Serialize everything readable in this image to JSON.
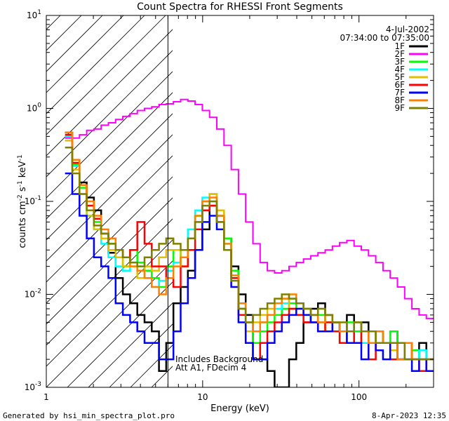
{
  "chart_data": {
    "type": "line",
    "title": "Count Spectra for RHESSI Front Segments",
    "xlabel": "Energy (keV)",
    "ylabel_parts": [
      "counts cm",
      "-2",
      " s",
      "-1",
      " keV",
      "-1"
    ],
    "xscale": "log",
    "yscale": "log",
    "xlim": [
      1,
      300
    ],
    "ylim": [
      0.001,
      10
    ],
    "x_ticks": [
      {
        "v": 1,
        "label": "1"
      },
      {
        "v": 10,
        "label": "10"
      },
      {
        "v": 100,
        "label": "100"
      }
    ],
    "y_ticks": [
      {
        "v": 0.001,
        "base": "10",
        "exp": "-3"
      },
      {
        "v": 0.01,
        "base": "10",
        "exp": "-2"
      },
      {
        "v": 0.1,
        "base": "10",
        "exp": "-1"
      },
      {
        "v": 1,
        "base": "10",
        "exp": "0"
      },
      {
        "v": 10,
        "base": "10",
        "exp": "1"
      }
    ],
    "date": "4-Jul-2002",
    "time_range": "07:34:00 to 07:35:00",
    "shaded_region_upper_keV": 6,
    "annotation_lines": [
      "Includes Background",
      "Att A1, FDecim 4"
    ],
    "legend_position": "top-right",
    "series": [
      {
        "name": "1F",
        "color": "#000000",
        "values": [
          0.55,
          0.28,
          0.16,
          0.11,
          0.08,
          0.045,
          0.028,
          0.015,
          0.01,
          0.008,
          0.006,
          0.005,
          0.004,
          0.0015,
          0.003,
          0.008,
          0.012,
          0.018,
          0.03,
          0.05,
          0.09,
          0.07,
          0.04,
          0.02,
          0.01,
          0.006,
          0.003,
          0.002,
          0.0015,
          0.001,
          0.001,
          0.002,
          0.003,
          0.005,
          0.007,
          0.008,
          0.006,
          0.005,
          0.004,
          0.006,
          0.004,
          0.005,
          0.003,
          0.004,
          0.003,
          0.004,
          0.003,
          0.003,
          0.002,
          0.003,
          0.002
        ]
      },
      {
        "name": "2F",
        "color": "#ff00ff",
        "values": [
          0.48,
          0.48,
          0.52,
          0.58,
          0.6,
          0.66,
          0.7,
          0.76,
          0.82,
          0.88,
          0.95,
          1.0,
          1.04,
          1.1,
          1.12,
          1.18,
          1.25,
          1.2,
          1.1,
          0.95,
          0.8,
          0.6,
          0.4,
          0.22,
          0.12,
          0.06,
          0.035,
          0.022,
          0.018,
          0.017,
          0.018,
          0.02,
          0.022,
          0.024,
          0.026,
          0.028,
          0.03,
          0.033,
          0.036,
          0.038,
          0.033,
          0.03,
          0.026,
          0.022,
          0.018,
          0.015,
          0.012,
          0.009,
          0.007,
          0.006,
          0.0055
        ]
      },
      {
        "name": "3F",
        "color": "#00ff00",
        "values": [
          0.5,
          0.25,
          0.14,
          0.09,
          0.06,
          0.045,
          0.035,
          0.025,
          0.02,
          0.03,
          0.022,
          0.018,
          0.015,
          0.012,
          0.02,
          0.03,
          0.025,
          0.04,
          0.07,
          0.1,
          0.12,
          0.08,
          0.04,
          0.018,
          0.008,
          0.004,
          0.003,
          0.004,
          0.005,
          0.006,
          0.007,
          0.008,
          0.007,
          0.006,
          0.005,
          0.006,
          0.005,
          0.004,
          0.003,
          0.005,
          0.004,
          0.003,
          0.003,
          0.004,
          0.003,
          0.004,
          0.002,
          0.003,
          0.0025,
          0.002,
          0.002
        ]
      },
      {
        "name": "4F",
        "color": "#00ffff",
        "values": [
          0.5,
          0.24,
          0.12,
          0.07,
          0.05,
          0.035,
          0.025,
          0.02,
          0.018,
          0.022,
          0.02,
          0.015,
          0.012,
          0.014,
          0.018,
          0.022,
          0.03,
          0.05,
          0.08,
          0.11,
          0.1,
          0.07,
          0.035,
          0.015,
          0.007,
          0.005,
          0.004,
          0.005,
          0.006,
          0.007,
          0.008,
          0.009,
          0.008,
          0.007,
          0.006,
          0.005,
          0.006,
          0.005,
          0.004,
          0.004,
          0.005,
          0.003,
          0.004,
          0.003,
          0.003,
          0.002,
          0.003,
          0.002,
          0.002,
          0.0025,
          0.002
        ]
      },
      {
        "name": "5F",
        "color": "#e0c000",
        "values": [
          0.45,
          0.22,
          0.12,
          0.07,
          0.05,
          0.04,
          0.03,
          0.025,
          0.02,
          0.02,
          0.015,
          0.02,
          0.018,
          0.025,
          0.03,
          0.03,
          0.02,
          0.04,
          0.06,
          0.1,
          0.12,
          0.08,
          0.03,
          0.015,
          0.007,
          0.004,
          0.005,
          0.006,
          0.007,
          0.008,
          0.009,
          0.007,
          0.006,
          0.007,
          0.006,
          0.005,
          0.004,
          0.005,
          0.004,
          0.004,
          0.003,
          0.004,
          0.003,
          0.003,
          0.003,
          0.0025,
          0.003,
          0.002,
          0.002,
          0.002,
          0.002
        ]
      },
      {
        "name": "6F",
        "color": "#ff0000",
        "values": [
          0.52,
          0.26,
          0.15,
          0.09,
          0.065,
          0.045,
          0.04,
          0.03,
          0.025,
          0.03,
          0.06,
          0.035,
          0.02,
          0.02,
          0.015,
          0.012,
          0.02,
          0.03,
          0.05,
          0.08,
          0.09,
          0.06,
          0.03,
          0.015,
          0.006,
          0.003,
          0.002,
          0.003,
          0.004,
          0.005,
          0.006,
          0.007,
          0.006,
          0.005,
          0.005,
          0.004,
          0.005,
          0.004,
          0.003,
          0.004,
          0.003,
          0.004,
          0.002,
          0.003,
          0.003,
          0.002,
          0.002,
          0.003,
          0.002,
          0.0015,
          0.002
        ]
      },
      {
        "name": "7F",
        "color": "#0000ff",
        "values": [
          0.2,
          0.12,
          0.07,
          0.04,
          0.025,
          0.02,
          0.015,
          0.008,
          0.006,
          0.005,
          0.004,
          0.003,
          0.003,
          0.002,
          0.002,
          0.004,
          0.008,
          0.015,
          0.03,
          0.06,
          0.07,
          0.05,
          0.03,
          0.012,
          0.005,
          0.003,
          0.002,
          0.002,
          0.003,
          0.004,
          0.005,
          0.006,
          0.007,
          0.006,
          0.005,
          0.004,
          0.004,
          0.005,
          0.004,
          0.003,
          0.003,
          0.002,
          0.003,
          0.0025,
          0.002,
          0.003,
          0.002,
          0.002,
          0.0015,
          0.002,
          0.0015
        ]
      },
      {
        "name": "8F",
        "color": "#ff8000",
        "values": [
          0.55,
          0.28,
          0.15,
          0.1,
          0.07,
          0.05,
          0.04,
          0.03,
          0.025,
          0.02,
          0.018,
          0.015,
          0.012,
          0.01,
          0.015,
          0.02,
          0.025,
          0.04,
          0.07,
          0.1,
          0.11,
          0.07,
          0.035,
          0.016,
          0.008,
          0.005,
          0.004,
          0.005,
          0.006,
          0.008,
          0.009,
          0.01,
          0.008,
          0.007,
          0.006,
          0.005,
          0.006,
          0.005,
          0.004,
          0.004,
          0.005,
          0.004,
          0.003,
          0.004,
          0.003,
          0.003,
          0.002,
          0.003,
          0.002,
          0.002,
          0.002
        ]
      },
      {
        "name": "9F",
        "color": "#808000",
        "values": [
          0.38,
          0.2,
          0.12,
          0.08,
          0.055,
          0.045,
          0.035,
          0.03,
          0.025,
          0.022,
          0.02,
          0.025,
          0.03,
          0.035,
          0.04,
          0.035,
          0.03,
          0.04,
          0.06,
          0.09,
          0.1,
          0.06,
          0.03,
          0.014,
          0.007,
          0.005,
          0.006,
          0.007,
          0.008,
          0.009,
          0.01,
          0.009,
          0.008,
          0.007,
          0.006,
          0.007,
          0.006,
          0.005,
          0.005,
          0.004,
          0.005,
          0.004,
          0.004,
          0.003,
          0.003,
          0.003,
          0.003,
          0.002,
          0.002,
          0.002,
          0.002
        ]
      }
    ]
  },
  "footer": {
    "generated_by": "Generated by hsi_min_spectra_plot.pro",
    "timestamp": "8-Apr-2023 12:35"
  }
}
